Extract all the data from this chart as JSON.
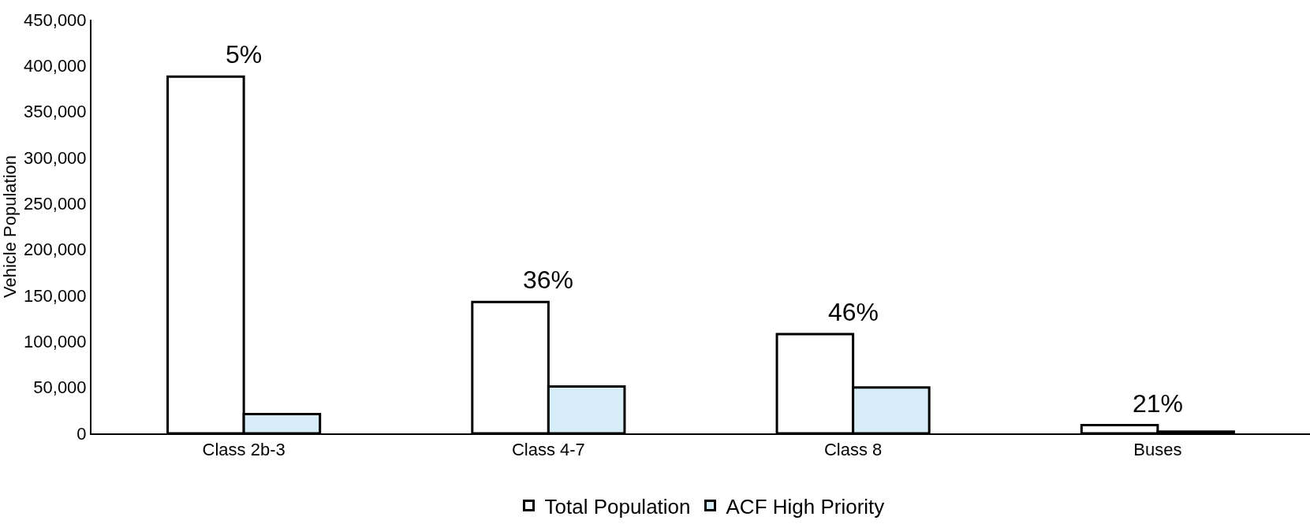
{
  "chart_data": {
    "type": "bar",
    "ylabel": "Vehicle Population",
    "categories": [
      "Class 2b-3",
      "Class 4-7",
      "Class 8",
      "Buses"
    ],
    "series": [
      {
        "name": "Total Population",
        "color": "#ffffff",
        "values": [
          388000,
          143000,
          108000,
          9000
        ]
      },
      {
        "name": "ACF High Priority",
        "color": "#d6ecf7",
        "values": [
          21000,
          51000,
          50000,
          2000
        ]
      }
    ],
    "ylim": [
      0,
      450000
    ],
    "yticks": [
      {
        "value": 0,
        "label": "0"
      },
      {
        "value": 50000,
        "label": "50,000"
      },
      {
        "value": 100000,
        "label": "100,000"
      },
      {
        "value": 150000,
        "label": "150,000"
      },
      {
        "value": 200000,
        "label": "200,000"
      },
      {
        "value": 250000,
        "label": "250,000"
      },
      {
        "value": 300000,
        "label": "300,000"
      },
      {
        "value": 350000,
        "label": "350,000"
      },
      {
        "value": 400000,
        "label": "400,000"
      },
      {
        "value": 450000,
        "label": "450,000"
      }
    ],
    "annotations": [
      {
        "text": "5%",
        "x": "Class 2b-3",
        "y": 388000
      },
      {
        "text": "36%",
        "x": "Class 4-7",
        "y": 143000
      },
      {
        "text": "46%",
        "x": "Class 8",
        "y": 108000
      },
      {
        "text": "21%",
        "x": "Buses",
        "y": 9000
      }
    ],
    "legend": "bottom"
  }
}
